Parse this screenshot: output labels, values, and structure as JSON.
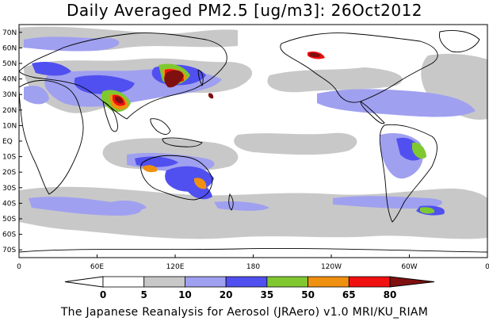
{
  "title": "Daily Averaged PM2.5 [ug/m3]: 26Oct2012",
  "credit": "The Japanese Reanalysis for Aerosol (JRAero) v1.0 MRI/KU_RIAM",
  "lat_labels": [
    "70N",
    "60N",
    "50N",
    "40N",
    "30N",
    "20N",
    "10N",
    "EQ",
    "10S",
    "20S",
    "30S",
    "40S",
    "50S",
    "60S",
    "70S"
  ],
  "lat_values": [
    70,
    60,
    50,
    40,
    30,
    20,
    10,
    0,
    -10,
    -20,
    -30,
    -40,
    -50,
    -60,
    -70
  ],
  "lon_labels": [
    "0",
    "60E",
    "120E",
    "180",
    "120W",
    "60W",
    "0"
  ],
  "lon_values": [
    0,
    60,
    120,
    180,
    240,
    300,
    360
  ],
  "colorbar": {
    "levels": [
      "0",
      "5",
      "10",
      "20",
      "35",
      "50",
      "65",
      "80"
    ],
    "colors": [
      "#ffffff",
      "#c8c8c8",
      "#a0a0f0",
      "#5050f0",
      "#80c830",
      "#f09010",
      "#f01010",
      "#801010"
    ]
  },
  "colors": {
    "c5": "#c8c8c8",
    "c10": "#a0a0f0",
    "c20": "#5050f0",
    "c35": "#80c830",
    "c50": "#f09010",
    "c65": "#f01010",
    "c80": "#801010",
    "coast": "#000000"
  }
}
